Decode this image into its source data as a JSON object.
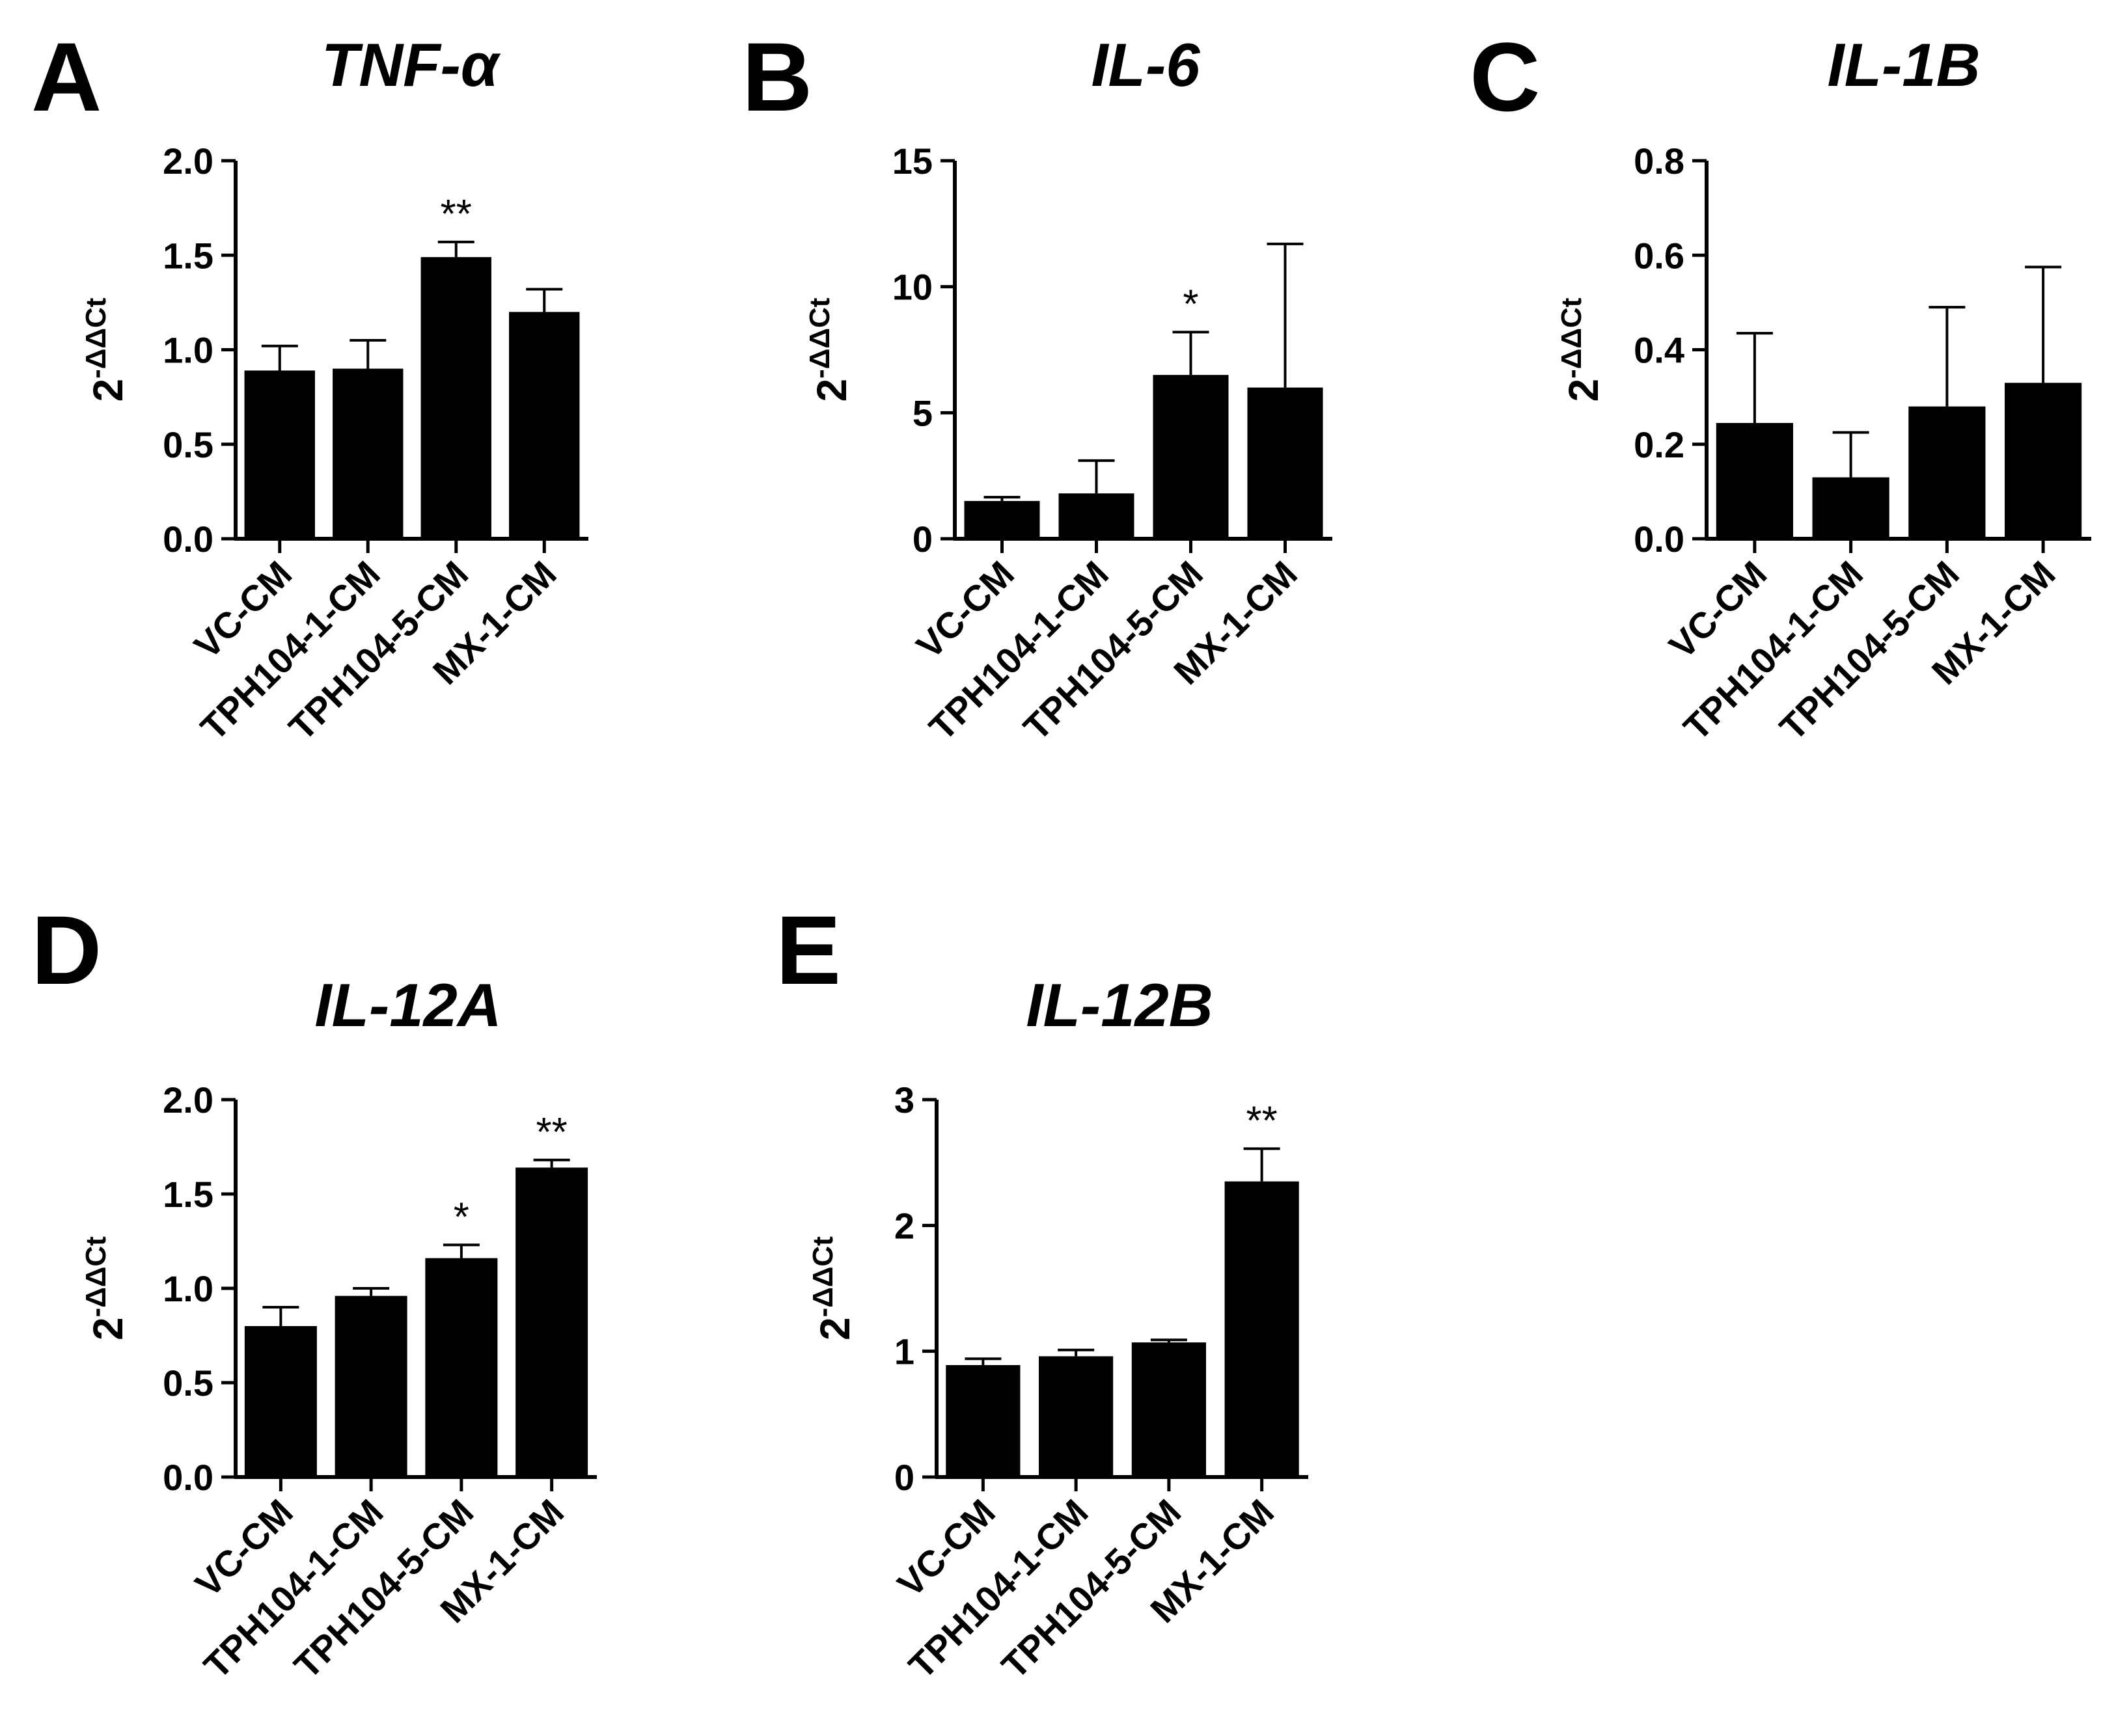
{
  "chart_data": [
    {
      "type": "bar",
      "panel": "A",
      "title": "TNF-α",
      "ylabel": {
        "base": "2",
        "exponent": "-ΔΔCt"
      },
      "categories": [
        "VC-CM",
        "TPH104-1-CM",
        "TPH104-5-CM",
        "MX-1-CM"
      ],
      "values": [
        0.89,
        0.9,
        1.49,
        1.2
      ],
      "errors": [
        0.13,
        0.15,
        0.08,
        0.12
      ],
      "significance": [
        "",
        "",
        "**",
        ""
      ],
      "ylim": [
        0,
        2.0
      ],
      "yticks": [
        "0.0",
        "0.5",
        "1.0",
        "1.5",
        "2.0"
      ]
    },
    {
      "type": "bar",
      "panel": "B",
      "title": "IL-6",
      "ylabel": {
        "base": "2",
        "exponent": "-ΔΔCt"
      },
      "categories": [
        "VC-CM",
        "TPH104-1-CM",
        "TPH104-5-CM",
        "MX-1-CM"
      ],
      "values": [
        1.5,
        1.8,
        6.5,
        6.0
      ],
      "errors": [
        0.15,
        1.3,
        1.7,
        5.7
      ],
      "significance": [
        "",
        "",
        "*",
        ""
      ],
      "ylim": [
        0,
        15
      ],
      "yticks": [
        "0",
        "5",
        "10",
        "15"
      ]
    },
    {
      "type": "bar",
      "panel": "C",
      "title": "IL-1B",
      "ylabel": {
        "base": "2",
        "exponent": "-ΔΔCt"
      },
      "categories": [
        "VC-CM",
        "TPH104-1-CM",
        "TPH104-5-CM",
        "MX-1-CM"
      ],
      "values": [
        0.245,
        0.13,
        0.28,
        0.33
      ],
      "errors": [
        0.19,
        0.095,
        0.21,
        0.245
      ],
      "significance": [
        "",
        "",
        "",
        ""
      ],
      "ylim": [
        0,
        0.8
      ],
      "yticks": [
        "0.0",
        "0.2",
        "0.4",
        "0.6",
        "0.8"
      ]
    },
    {
      "type": "bar",
      "panel": "D",
      "title": "IL-12A",
      "ylabel": {
        "base": "2",
        "exponent": "-ΔΔCt"
      },
      "categories": [
        "VC-CM",
        "TPH104-1-CM",
        "TPH104-5-CM",
        "MX-1-CM"
      ],
      "values": [
        0.8,
        0.96,
        1.16,
        1.64
      ],
      "errors": [
        0.1,
        0.04,
        0.07,
        0.04
      ],
      "significance": [
        "",
        "",
        "*",
        "**"
      ],
      "ylim": [
        0,
        2.0
      ],
      "yticks": [
        "0.0",
        "0.5",
        "1.0",
        "1.5",
        "2.0"
      ]
    },
    {
      "type": "bar",
      "panel": "E",
      "title": "IL-12B",
      "ylabel": {
        "base": "2",
        "exponent": "-ΔΔCt"
      },
      "categories": [
        "VC-CM",
        "TPH104-1-CM",
        "TPH104-5-CM",
        "MX-1-CM"
      ],
      "values": [
        0.89,
        0.96,
        1.07,
        2.35
      ],
      "errors": [
        0.05,
        0.05,
        0.02,
        0.26
      ],
      "significance": [
        "",
        "",
        "",
        "**"
      ],
      "ylim": [
        0,
        3
      ],
      "yticks": [
        "0",
        "1",
        "2",
        "3"
      ]
    }
  ]
}
